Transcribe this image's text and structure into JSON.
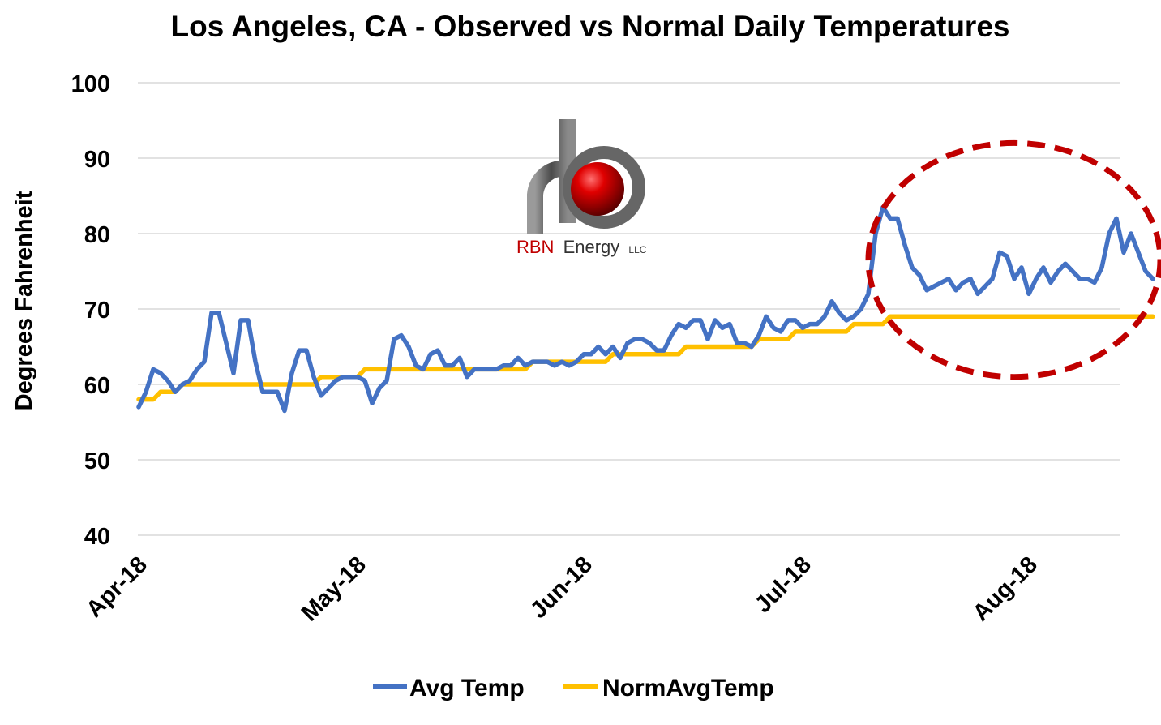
{
  "chart_data": {
    "type": "line",
    "title": "Los Angeles, CA - Observed vs Normal Daily Temperatures",
    "xlabel": "",
    "ylabel": "Degrees Fahrenheit",
    "ylim": [
      40,
      100
    ],
    "yticks": [
      40,
      50,
      60,
      70,
      80,
      90,
      100
    ],
    "x_tick_labels": [
      "Apr-18",
      "May-18",
      "Jun-18",
      "Jul-18",
      "Aug-18"
    ],
    "x_range": [
      "2018-04-01",
      "2018-08-15"
    ],
    "grid": "horizontal",
    "legend_position": "bottom",
    "series": [
      {
        "name": "Avg Temp",
        "color": "#4472C4",
        "points": [
          [
            "2018-04-01",
            57
          ],
          [
            "2018-04-02",
            59
          ],
          [
            "2018-04-03",
            62
          ],
          [
            "2018-04-04",
            61.5
          ],
          [
            "2018-04-05",
            60.5
          ],
          [
            "2018-04-06",
            59
          ],
          [
            "2018-04-07",
            60
          ],
          [
            "2018-04-08",
            60.5
          ],
          [
            "2018-04-09",
            62
          ],
          [
            "2018-04-10",
            63
          ],
          [
            "2018-04-11",
            69.5
          ],
          [
            "2018-04-12",
            69.5
          ],
          [
            "2018-04-13",
            65.5
          ],
          [
            "2018-04-14",
            61.5
          ],
          [
            "2018-04-15",
            68.5
          ],
          [
            "2018-04-16",
            68.5
          ],
          [
            "2018-04-17",
            63
          ],
          [
            "2018-04-18",
            59
          ],
          [
            "2018-04-19",
            59
          ],
          [
            "2018-04-20",
            59
          ],
          [
            "2018-04-21",
            56.5
          ],
          [
            "2018-04-22",
            61.5
          ],
          [
            "2018-04-23",
            64.5
          ],
          [
            "2018-04-24",
            64.5
          ],
          [
            "2018-04-25",
            61
          ],
          [
            "2018-04-26",
            58.5
          ],
          [
            "2018-04-27",
            59.5
          ],
          [
            "2018-04-28",
            60.5
          ],
          [
            "2018-04-29",
            61
          ],
          [
            "2018-04-30",
            61
          ],
          [
            "2018-05-01",
            61
          ],
          [
            "2018-05-02",
            60.5
          ],
          [
            "2018-05-03",
            57.5
          ],
          [
            "2018-05-04",
            59.5
          ],
          [
            "2018-05-05",
            60.5
          ],
          [
            "2018-05-06",
            66
          ],
          [
            "2018-05-07",
            66.5
          ],
          [
            "2018-05-08",
            65
          ],
          [
            "2018-05-09",
            62.5
          ],
          [
            "2018-05-10",
            62
          ],
          [
            "2018-05-11",
            64
          ],
          [
            "2018-05-12",
            64.5
          ],
          [
            "2018-05-13",
            62.5
          ],
          [
            "2018-05-14",
            62.5
          ],
          [
            "2018-05-15",
            63.5
          ],
          [
            "2018-05-16",
            61
          ],
          [
            "2018-05-17",
            62
          ],
          [
            "2018-05-18",
            62
          ],
          [
            "2018-05-19",
            62
          ],
          [
            "2018-05-20",
            62
          ],
          [
            "2018-05-21",
            62.5
          ],
          [
            "2018-05-22",
            62.5
          ],
          [
            "2018-05-23",
            63.5
          ],
          [
            "2018-05-24",
            62.5
          ],
          [
            "2018-05-25",
            63
          ],
          [
            "2018-05-26",
            63
          ],
          [
            "2018-05-27",
            63
          ],
          [
            "2018-05-28",
            62.5
          ],
          [
            "2018-05-29",
            63
          ],
          [
            "2018-05-30",
            62.5
          ],
          [
            "2018-05-31",
            63
          ],
          [
            "2018-06-01",
            64
          ],
          [
            "2018-06-02",
            64
          ],
          [
            "2018-06-03",
            65
          ],
          [
            "2018-06-04",
            64
          ],
          [
            "2018-06-05",
            65
          ],
          [
            "2018-06-06",
            63.5
          ],
          [
            "2018-06-07",
            65.5
          ],
          [
            "2018-06-08",
            66
          ],
          [
            "2018-06-09",
            66
          ],
          [
            "2018-06-10",
            65.5
          ],
          [
            "2018-06-11",
            64.5
          ],
          [
            "2018-06-12",
            64.5
          ],
          [
            "2018-06-13",
            66.5
          ],
          [
            "2018-06-14",
            68
          ],
          [
            "2018-06-15",
            67.5
          ],
          [
            "2018-06-16",
            68.5
          ],
          [
            "2018-06-17",
            68.5
          ],
          [
            "2018-06-18",
            66
          ],
          [
            "2018-06-19",
            68.5
          ],
          [
            "2018-06-20",
            67.5
          ],
          [
            "2018-06-21",
            68
          ],
          [
            "2018-06-22",
            65.5
          ],
          [
            "2018-06-23",
            65.5
          ],
          [
            "2018-06-24",
            65
          ],
          [
            "2018-06-25",
            66.5
          ],
          [
            "2018-06-26",
            69
          ],
          [
            "2018-06-27",
            67.5
          ],
          [
            "2018-06-28",
            67
          ],
          [
            "2018-06-29",
            68.5
          ],
          [
            "2018-06-30",
            68.5
          ],
          [
            "2018-07-01",
            67.5
          ],
          [
            "2018-07-02",
            68
          ],
          [
            "2018-07-03",
            68
          ],
          [
            "2018-07-04",
            69
          ],
          [
            "2018-07-05",
            71
          ],
          [
            "2018-07-06",
            69.5
          ],
          [
            "2018-07-07",
            68.5
          ],
          [
            "2018-07-08",
            69
          ],
          [
            "2018-07-09",
            70
          ],
          [
            "2018-07-10",
            72
          ],
          [
            "2018-07-11",
            80
          ],
          [
            "2018-07-12",
            83.5
          ],
          [
            "2018-07-13",
            82
          ],
          [
            "2018-07-14",
            82
          ],
          [
            "2018-07-15",
            78.5
          ],
          [
            "2018-07-16",
            75.5
          ],
          [
            "2018-07-17",
            74.5
          ],
          [
            "2018-07-18",
            72.5
          ],
          [
            "2018-07-19",
            73
          ],
          [
            "2018-07-20",
            73.5
          ],
          [
            "2018-07-21",
            74
          ],
          [
            "2018-07-22",
            72.5
          ],
          [
            "2018-07-23",
            73.5
          ],
          [
            "2018-07-24",
            74
          ],
          [
            "2018-07-25",
            72
          ],
          [
            "2018-07-26",
            73
          ],
          [
            "2018-07-27",
            74
          ],
          [
            "2018-07-28",
            77.5
          ],
          [
            "2018-07-29",
            77
          ],
          [
            "2018-07-30",
            74
          ],
          [
            "2018-07-31",
            75.5
          ],
          [
            "2018-08-01",
            72
          ],
          [
            "2018-08-02",
            74
          ],
          [
            "2018-08-03",
            75.5
          ],
          [
            "2018-08-04",
            73.5
          ],
          [
            "2018-08-05",
            75
          ],
          [
            "2018-08-06",
            76
          ],
          [
            "2018-08-07",
            75
          ],
          [
            "2018-08-08",
            74
          ],
          [
            "2018-08-09",
            74
          ],
          [
            "2018-08-10",
            73.5
          ],
          [
            "2018-08-11",
            75.5
          ],
          [
            "2018-08-12",
            80
          ],
          [
            "2018-08-13",
            82
          ],
          [
            "2018-08-14",
            77.5
          ],
          [
            "2018-08-15",
            80
          ],
          [
            "2018-08-16",
            77.5
          ],
          [
            "2018-08-17",
            75
          ],
          [
            "2018-08-18",
            74
          ]
        ]
      },
      {
        "name": "NormAvgTemp",
        "color": "#FFC000",
        "points": [
          [
            "2018-04-01",
            58
          ],
          [
            "2018-04-03",
            58
          ],
          [
            "2018-04-04",
            59
          ],
          [
            "2018-04-06",
            59
          ],
          [
            "2018-04-07",
            60
          ],
          [
            "2018-04-25",
            60
          ],
          [
            "2018-04-26",
            61
          ],
          [
            "2018-05-01",
            61
          ],
          [
            "2018-05-02",
            62
          ],
          [
            "2018-05-24",
            62
          ],
          [
            "2018-05-25",
            63
          ],
          [
            "2018-06-04",
            63
          ],
          [
            "2018-06-05",
            64
          ],
          [
            "2018-06-14",
            64
          ],
          [
            "2018-06-15",
            65
          ],
          [
            "2018-06-24",
            65
          ],
          [
            "2018-06-25",
            66
          ],
          [
            "2018-06-29",
            66
          ],
          [
            "2018-06-30",
            67
          ],
          [
            "2018-07-07",
            67
          ],
          [
            "2018-07-08",
            68
          ],
          [
            "2018-07-12",
            68
          ],
          [
            "2018-07-13",
            69
          ],
          [
            "2018-08-18",
            69
          ]
        ]
      }
    ],
    "annotations": [
      {
        "type": "dashed-ellipse",
        "color": "#C00000",
        "x_range": [
          "2018-07-10",
          "2018-08-19"
        ],
        "y_range": [
          61,
          92
        ]
      }
    ]
  },
  "logo": {
    "company": "RBN",
    "word": "Energy",
    "suffix": "LLC",
    "red_color": "#C00000",
    "gray_color": "#6d6d6d"
  }
}
